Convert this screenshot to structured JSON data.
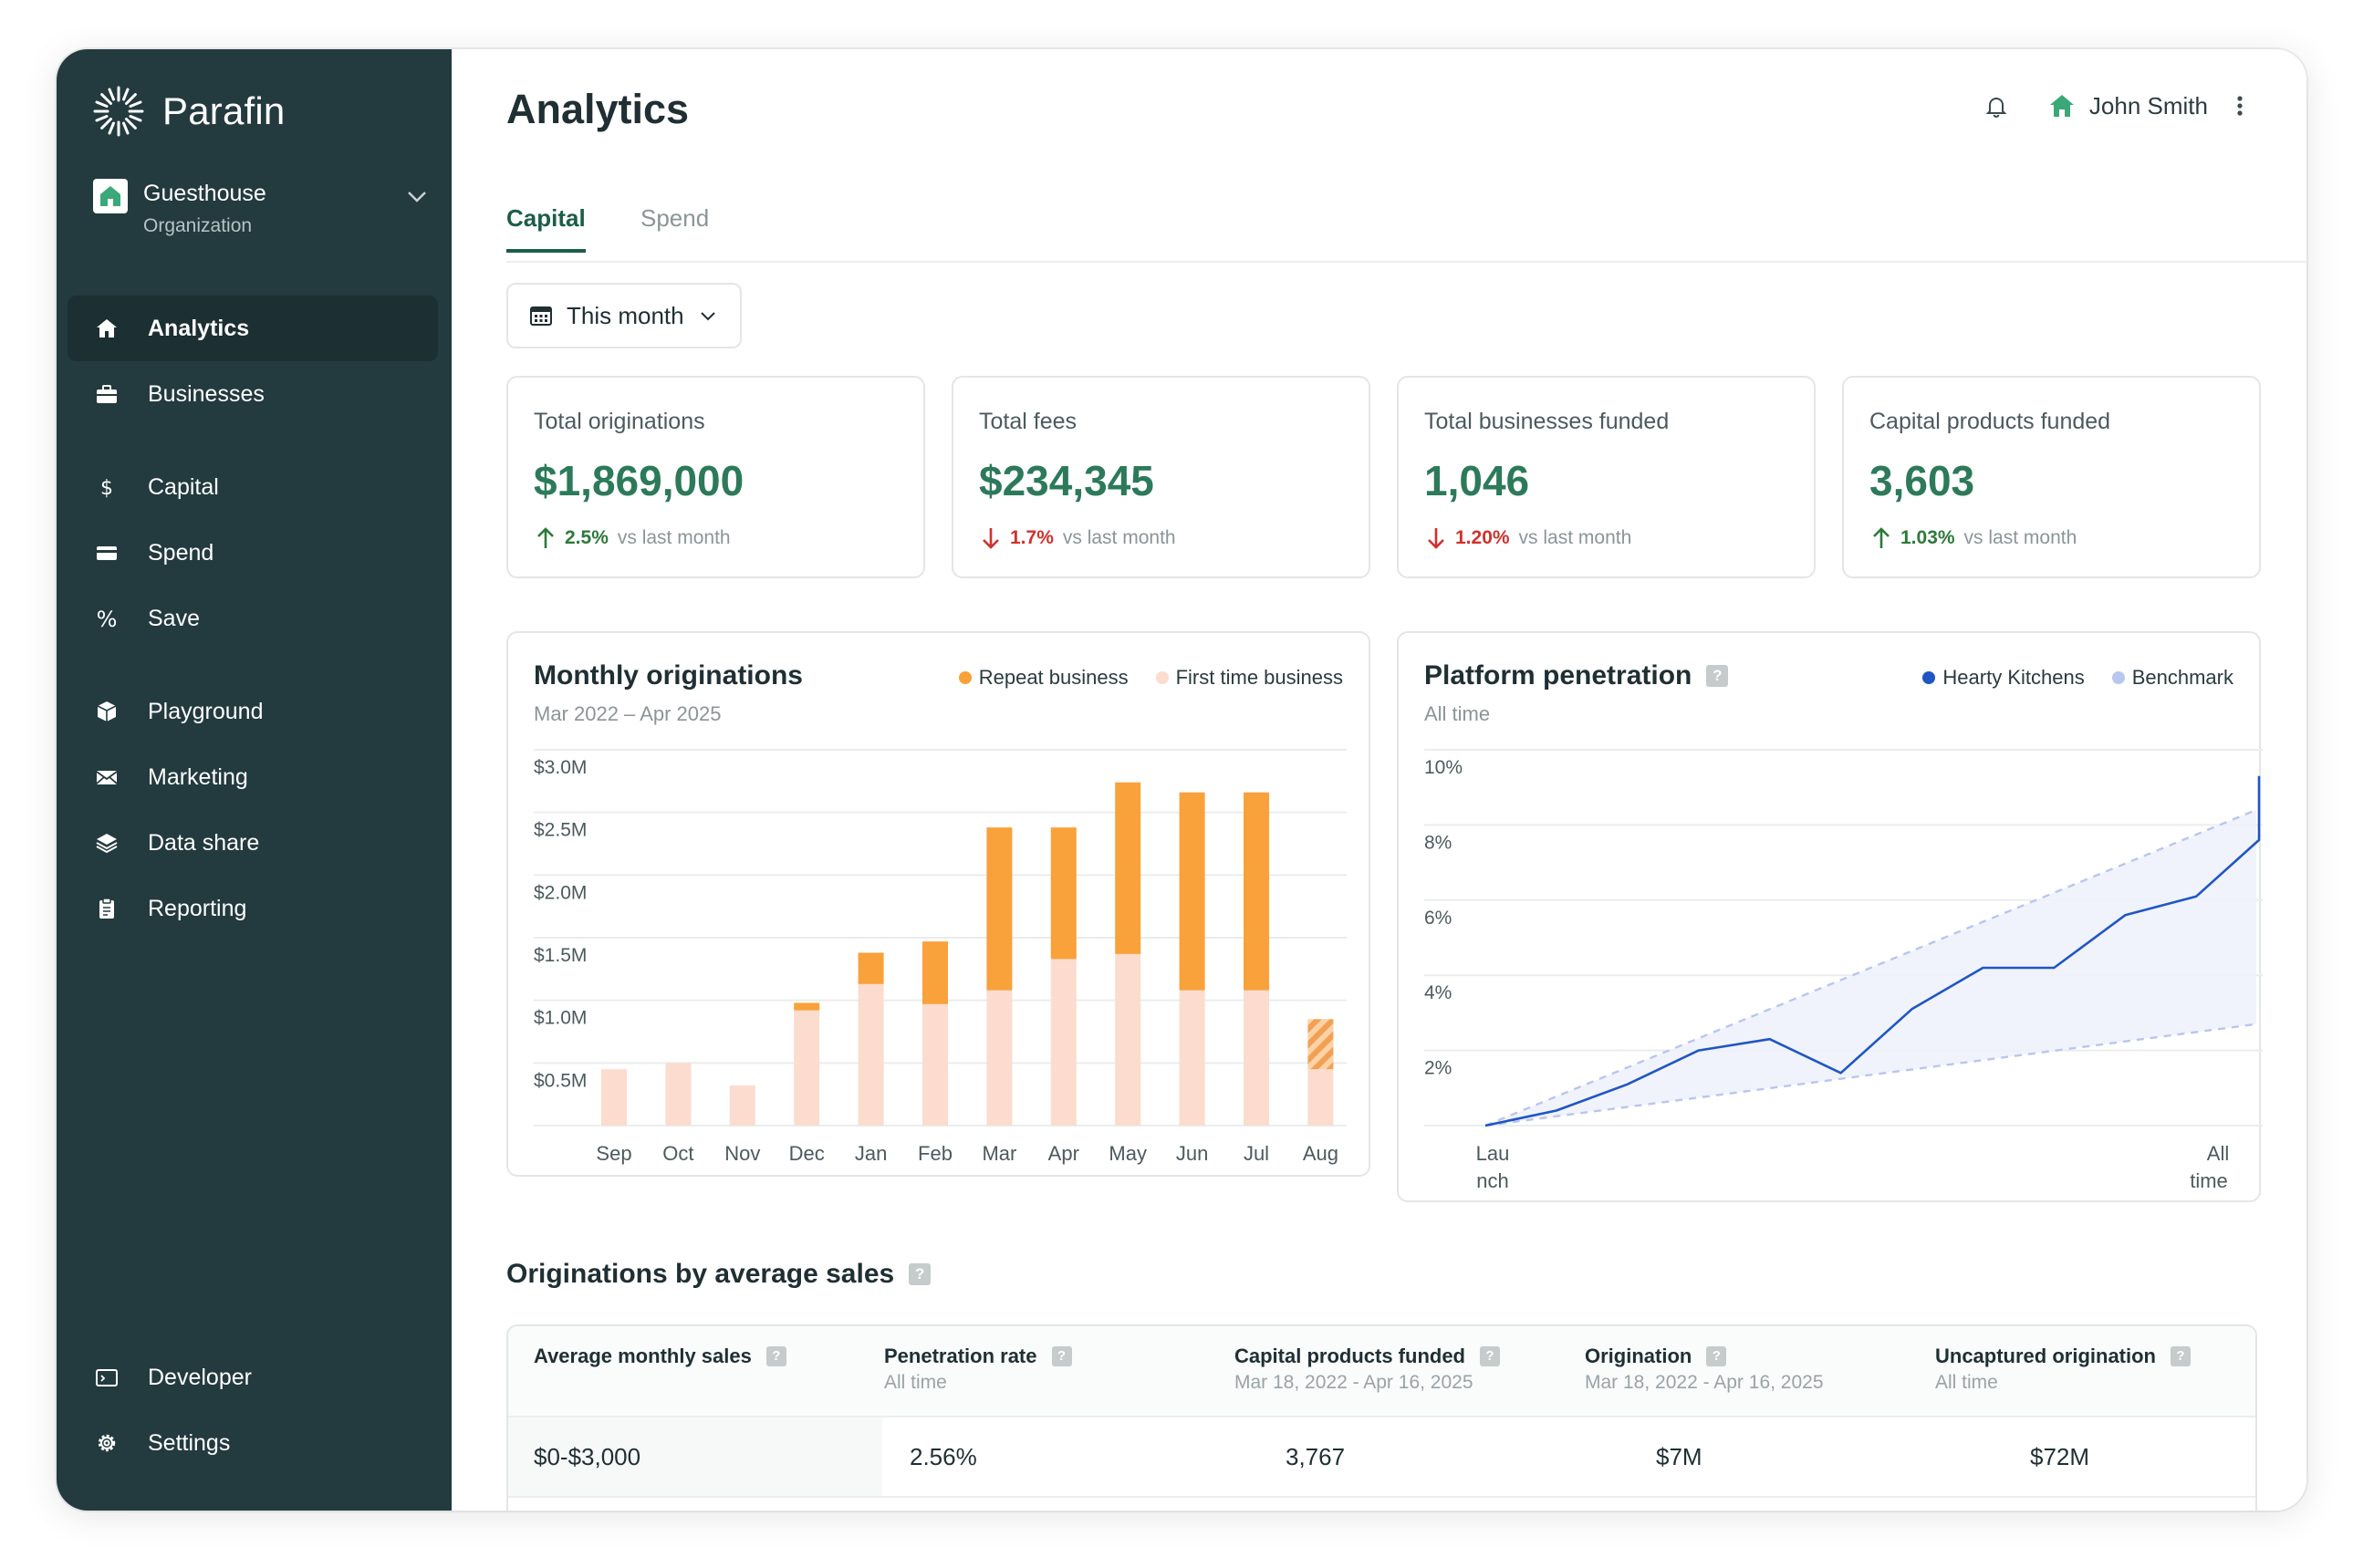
{
  "app": {
    "name": "Parafin"
  },
  "org": {
    "name": "Guesthouse",
    "role": "Organization"
  },
  "nav": {
    "analytics": "Analytics",
    "businesses": "Businesses",
    "capital": "Capital",
    "spend": "Spend",
    "save": "Save",
    "playground": "Playground",
    "marketing": "Marketing",
    "data_share": "Data share",
    "reporting": "Reporting",
    "developer": "Developer",
    "settings": "Settings"
  },
  "header": {
    "title": "Analytics",
    "user": "John Smith"
  },
  "tabs": {
    "capital": "Capital",
    "spend": "Spend"
  },
  "filter": {
    "label": "This month"
  },
  "kpis": [
    {
      "label": "Total originations",
      "value": "$1,869,000",
      "delta": "2.5%",
      "direction": "up",
      "vs": "vs last month"
    },
    {
      "label": "Total fees",
      "value": "$234,345",
      "delta": "1.7%",
      "direction": "down",
      "vs": "vs last month"
    },
    {
      "label": "Total businesses funded",
      "value": "1,046",
      "delta": "1.20%",
      "direction": "down",
      "vs": "vs last month"
    },
    {
      "label": "Capital products funded",
      "value": "3,603",
      "delta": "1.03%",
      "direction": "up",
      "vs": "vs last month"
    }
  ],
  "colors": {
    "sidebar": "#233a3f",
    "accent_green": "#2c7a5a",
    "repeat": "#f9a13a",
    "first_time": "#fbdccf",
    "hearty": "#1f56c4",
    "benchmark": "#b9c6ee",
    "down": "#d0312d"
  },
  "chart_data": [
    {
      "type": "bar",
      "title": "Monthly originations",
      "subtitle": "Mar 2022 – Apr 2025",
      "stacked": true,
      "categories": [
        "Sep",
        "Oct",
        "Nov",
        "Dec",
        "Jan",
        "Feb",
        "Mar",
        "Apr",
        "May",
        "Jun",
        "Jul",
        "Aug"
      ],
      "series": [
        {
          "name": "First time business",
          "values": [
            0.45,
            0.5,
            0.32,
            0.92,
            1.13,
            0.97,
            1.08,
            1.33,
            1.37,
            1.08,
            1.08,
            0.45
          ]
        },
        {
          "name": "Repeat business",
          "values": [
            0,
            0,
            0,
            0.06,
            0.25,
            0.5,
            1.3,
            1.05,
            1.37,
            1.58,
            1.58,
            0.4
          ]
        }
      ],
      "hatched_last": true,
      "ytick_labels": [
        "$3.0M",
        "$2.5M",
        "$2.0M",
        "$1.5M",
        "$1.0M",
        "$0.5M"
      ],
      "ylim": [
        0,
        3.0
      ],
      "legend": "top-right",
      "grid": true
    },
    {
      "type": "line",
      "title": "Platform penetration",
      "subtitle": "All time",
      "x_labels": [
        "Lau\nnch",
        "All\ntime"
      ],
      "ytick_labels": [
        "10%",
        "8%",
        "6%",
        "4%",
        "2%"
      ],
      "ylim": [
        0,
        10
      ],
      "series": [
        {
          "name": "Hearty Kitchens",
          "values": [
            0,
            0.4,
            1.1,
            2.0,
            2.3,
            1.4,
            3.1,
            4.2,
            4.2,
            5.6,
            6.1,
            7.6,
            9.3
          ]
        },
        {
          "name": "Benchmark",
          "range_low": [
            0,
            2.7
          ],
          "range_high": [
            0,
            8.4
          ]
        }
      ],
      "legend": "top-right",
      "grid": true
    }
  ],
  "section": {
    "title": "Originations by average sales"
  },
  "table": {
    "columns": [
      {
        "header": "Average monthly sales",
        "sub": ""
      },
      {
        "header": "Penetration rate",
        "sub": "All time"
      },
      {
        "header": "Capital products funded",
        "sub": "Mar 18, 2022 - Apr 16, 2025"
      },
      {
        "header": "Origination",
        "sub": "Mar 18, 2022 - Apr 16, 2025"
      },
      {
        "header": "Uncaptured origination",
        "sub": "All time"
      }
    ],
    "rows": [
      [
        "$0-$3,000",
        "2.56%",
        "3,767",
        "$7M",
        "$72M"
      ]
    ]
  }
}
